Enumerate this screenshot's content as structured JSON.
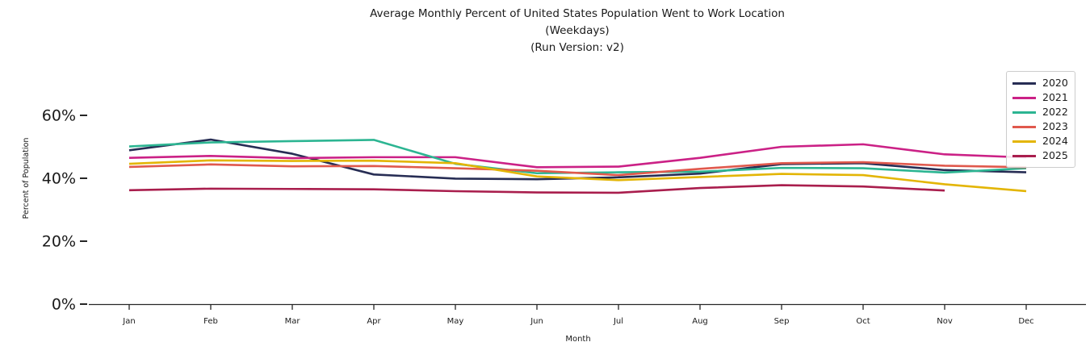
{
  "chart_data": {
    "type": "line",
    "title_lines": [
      "Average Monthly Percent of United States Population Went to Work Location",
      "(Weekdays)",
      "(Run Version: v2)"
    ],
    "xlabel": "Month",
    "ylabel": "Percent of Population",
    "categories": [
      "Jan",
      "Feb",
      "Mar",
      "Apr",
      "May",
      "Jun",
      "Jul",
      "Aug",
      "Sep",
      "Oct",
      "Nov",
      "Dec"
    ],
    "y_axis": {
      "tick_values": [
        0,
        20,
        40,
        60
      ],
      "tick_labels": [
        "0%",
        "20%",
        "40%",
        "60%"
      ],
      "range": [
        0,
        68
      ],
      "unit": "%"
    },
    "grid": false,
    "legend_position": "upper right",
    "series": [
      {
        "name": "2020",
        "color": "#272D54",
        "values": [
          48.9,
          52.3,
          47.8,
          41.2,
          39.9,
          39.7,
          40.3,
          41.5,
          44.5,
          44.8,
          42.6,
          41.9
        ]
      },
      {
        "name": "2021",
        "color": "#CB2186",
        "values": [
          46.5,
          47.1,
          46.4,
          46.7,
          46.7,
          43.5,
          43.7,
          46.5,
          50.0,
          50.8,
          47.6,
          46.6
        ]
      },
      {
        "name": "2022",
        "color": "#2CB592",
        "values": [
          50.1,
          51.4,
          51.8,
          52.2,
          44.6,
          41.6,
          41.9,
          42.1,
          43.3,
          43.2,
          41.8,
          43.2
        ]
      },
      {
        "name": "2023",
        "color": "#E0594D",
        "values": [
          43.6,
          44.4,
          43.8,
          43.9,
          43.2,
          42.4,
          41.0,
          43.0,
          44.8,
          45.1,
          44.0,
          43.5
        ]
      },
      {
        "name": "2024",
        "color": "#E3B505",
        "values": [
          44.6,
          45.7,
          45.5,
          45.6,
          44.8,
          40.6,
          39.4,
          40.4,
          41.4,
          41.0,
          38.1,
          35.9
        ]
      },
      {
        "name": "2025",
        "color": "#A91E4D",
        "values": [
          36.2,
          36.7,
          36.6,
          36.5,
          35.9,
          35.5,
          35.4,
          36.9,
          37.8,
          37.4,
          36.1,
          null
        ]
      }
    ],
    "axis_color": "#262626"
  }
}
